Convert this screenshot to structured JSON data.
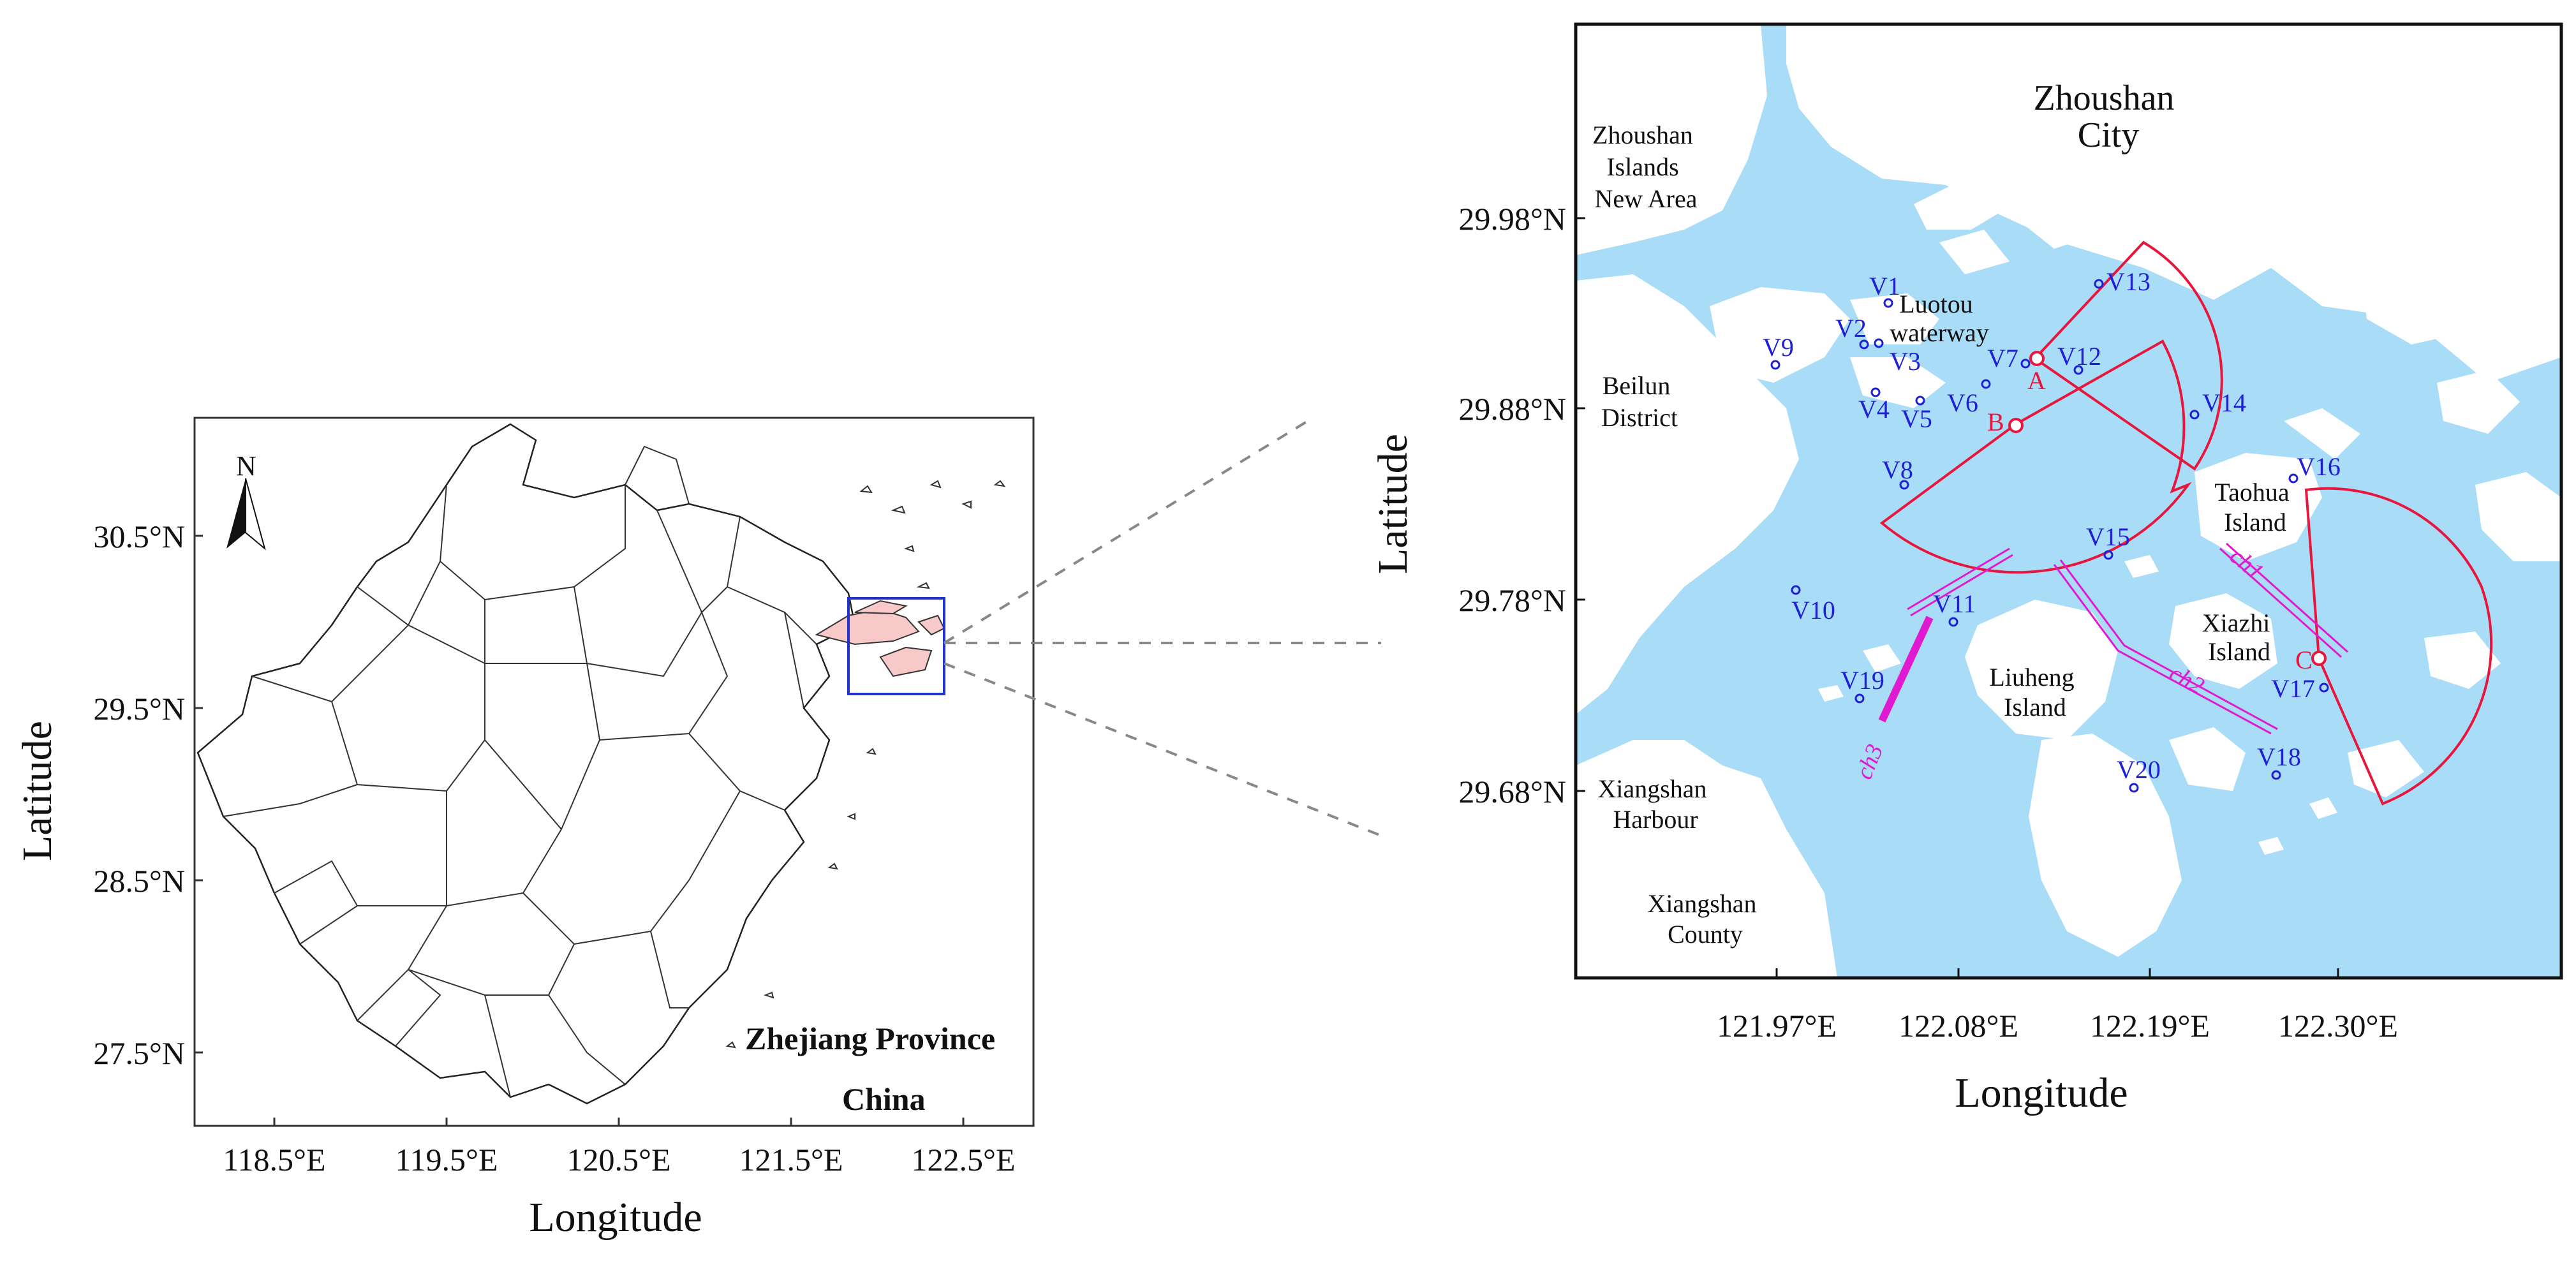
{
  "left_map": {
    "province_label": "Zhejiang Province",
    "country_label": "China",
    "north_label": "N",
    "x_ticks": [
      "118.5°E",
      "119.5°E",
      "120.5°E",
      "121.5°E",
      "122.5°E"
    ],
    "y_ticks": [
      "30.5°N",
      "29.5°N",
      "28.5°N",
      "27.5°N"
    ],
    "x_axis_label": "Longitude",
    "y_axis_label": "Latitude",
    "highlight_color": "#f7c9c9",
    "box_color": "#2233cc"
  },
  "right_map": {
    "x_ticks": [
      "121.97°E",
      "122.08°E",
      "122.19°E",
      "122.30°E"
    ],
    "y_ticks": [
      "29.98°N",
      "29.88°N",
      "29.78°N",
      "29.68°N"
    ],
    "x_axis_label": "Longitude",
    "y_axis_label": "Latitude",
    "water_color": "#a9dcf7",
    "place_labels": {
      "zhoushan_city": [
        "Zhoushan",
        "City"
      ],
      "new_area": [
        "Zhoushan",
        "Islands",
        "New Area"
      ],
      "beilun": [
        "Beilun",
        "District"
      ],
      "luotou": [
        "Luotou",
        "waterway"
      ],
      "taohua": [
        "Taohua",
        "Island"
      ],
      "xiazhi": [
        "Xiazhi",
        "Island"
      ],
      "liuheng": [
        "Liuheng",
        "Island"
      ],
      "xiangshan_harbour": [
        "Xiangshan",
        "Harbour"
      ],
      "xiangshan_county": [
        "Xiangshan",
        "County"
      ]
    },
    "vessels": [
      "V1",
      "V2",
      "V3",
      "V4",
      "V5",
      "V6",
      "V7",
      "V8",
      "V9",
      "V10",
      "V11",
      "V12",
      "V13",
      "V14",
      "V15",
      "V16",
      "V17",
      "V18",
      "V19",
      "V20"
    ],
    "points": [
      "A",
      "B",
      "C"
    ],
    "channels": [
      "ch1",
      "ch2",
      "ch3"
    ],
    "vessel_color": "#1f1fd6",
    "sector_color": "#e8163c",
    "channel_color": "#e01ad0"
  }
}
